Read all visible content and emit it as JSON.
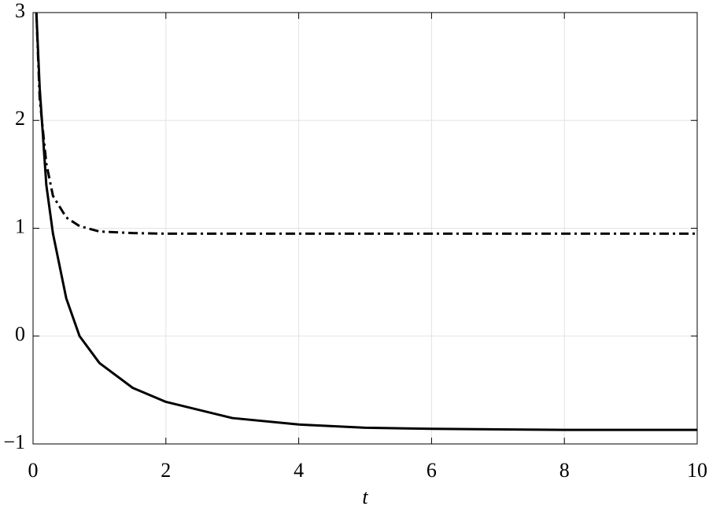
{
  "chart_data": {
    "type": "line",
    "x_label": "t",
    "xlim": [
      0,
      10
    ],
    "xticks": [
      0,
      2,
      4,
      6,
      8,
      10
    ],
    "ylim": [
      -1,
      3
    ],
    "yticks": [
      {
        "value": -1,
        "label": "−1"
      },
      0,
      1,
      2,
      3
    ],
    "grid": true,
    "series": [
      {
        "color": "#000000",
        "line_style": "solid",
        "x": [
          0.05,
          0.1,
          0.2,
          0.3,
          0.5,
          0.7,
          1,
          1.5,
          2,
          3,
          4,
          5,
          6,
          8,
          10
        ],
        "values": [
          3,
          2.3,
          1.4,
          0.95,
          0.35,
          0.0,
          -0.25,
          -0.48,
          -0.61,
          -0.76,
          -0.82,
          -0.85,
          -0.86,
          -0.87,
          -0.87
        ]
      },
      {
        "color": "#000000",
        "line_style": "dashdot",
        "x": [
          0.05,
          0.1,
          0.2,
          0.3,
          0.5,
          0.7,
          1,
          1.5,
          2,
          10
        ],
        "values": [
          3,
          2.2,
          1.6,
          1.3,
          1.1,
          1.02,
          0.97,
          0.955,
          0.95,
          0.95
        ]
      }
    ]
  }
}
